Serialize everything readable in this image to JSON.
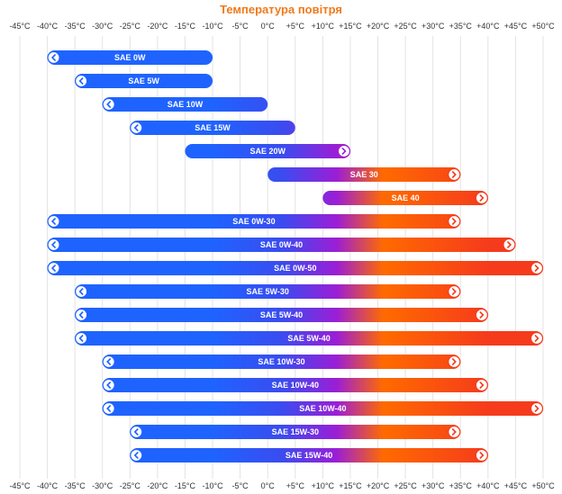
{
  "chart_data": {
    "type": "bar",
    "orientation": "horizontal-range",
    "title": "Температура повітря",
    "xlabel": "",
    "ylabel": "",
    "grid": true,
    "legend": "none",
    "xlim": [
      -45,
      50
    ],
    "x_ticks": [
      "-45°C",
      "-40°C",
      "-35°C",
      "-30°C",
      "-25°C",
      "-20°C",
      "-15°C",
      "-10°C",
      "-5°C",
      "0°C",
      "+5°C",
      "+10°C",
      "+15°C",
      "+20°C",
      "+25°C",
      "+30°C",
      "+35°C",
      "+40°C",
      "+45°C",
      "+50°C"
    ],
    "x_tick_values": [
      -45,
      -40,
      -35,
      -30,
      -25,
      -20,
      -15,
      -10,
      -5,
      0,
      5,
      10,
      15,
      20,
      25,
      30,
      35,
      40,
      45,
      50
    ],
    "bars": [
      {
        "label": "SAE 0W",
        "min": -40,
        "max": -10,
        "left_marker": true,
        "right_marker": false
      },
      {
        "label": "SAE 5W",
        "min": -35,
        "max": -10,
        "left_marker": true,
        "right_marker": false
      },
      {
        "label": "SAE 10W",
        "min": -30,
        "max": 0,
        "left_marker": true,
        "right_marker": false
      },
      {
        "label": "SAE 15W",
        "min": -25,
        "max": 5,
        "left_marker": true,
        "right_marker": false
      },
      {
        "label": "SAE 20W",
        "min": -15,
        "max": 15,
        "left_marker": false,
        "right_marker": true
      },
      {
        "label": "SAE 30",
        "min": 0,
        "max": 35,
        "left_marker": false,
        "right_marker": true
      },
      {
        "label": "SAE 40",
        "min": 10,
        "max": 40,
        "left_marker": false,
        "right_marker": true
      },
      {
        "label": "SAE 0W-30",
        "min": -40,
        "max": 35,
        "left_marker": true,
        "right_marker": true
      },
      {
        "label": "SAE 0W-40",
        "min": -40,
        "max": 45,
        "left_marker": true,
        "right_marker": true
      },
      {
        "label": "SAE 0W-50",
        "min": -40,
        "max": 50,
        "left_marker": true,
        "right_marker": true
      },
      {
        "label": "SAE 5W-30",
        "min": -35,
        "max": 35,
        "left_marker": true,
        "right_marker": true
      },
      {
        "label": "SAE 5W-40",
        "min": -35,
        "max": 40,
        "left_marker": true,
        "right_marker": true
      },
      {
        "label": "SAE 5W-40",
        "min": -35,
        "max": 50,
        "left_marker": true,
        "right_marker": true
      },
      {
        "label": "SAE 10W-30",
        "min": -30,
        "max": 35,
        "left_marker": true,
        "right_marker": true
      },
      {
        "label": "SAE 10W-40",
        "min": -30,
        "max": 40,
        "left_marker": true,
        "right_marker": true
      },
      {
        "label": "SAE 10W-40",
        "min": -30,
        "max": 50,
        "left_marker": true,
        "right_marker": true
      },
      {
        "label": "SAE 15W-30",
        "min": -25,
        "max": 35,
        "left_marker": true,
        "right_marker": true
      },
      {
        "label": "SAE 15W-40",
        "min": -25,
        "max": 40,
        "left_marker": true,
        "right_marker": true
      }
    ],
    "colors": {
      "cold": "#1f63ff",
      "mid": "#9b1ed6",
      "hot": "#ff6a00",
      "hot_end": "#f53b1c",
      "title": "#f07a1c",
      "grid": "#e3e3e3",
      "tick_text": "#333333"
    }
  }
}
